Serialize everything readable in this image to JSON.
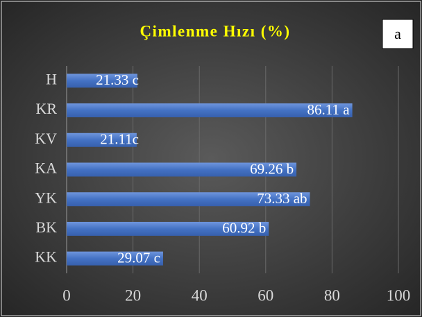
{
  "chart_data": {
    "type": "bar",
    "orientation": "horizontal",
    "title": "Çimlenme Hızı (%)",
    "annotation": "a",
    "categories": [
      "H",
      "KR",
      "KV",
      "KA",
      "YK",
      "BK",
      "KK"
    ],
    "values": [
      21.33,
      86.11,
      21.11,
      69.26,
      73.33,
      60.92,
      29.07
    ],
    "value_labels": [
      "21.33 c",
      "86.11 a",
      "21.11c",
      "69.26 b",
      "73.33 ab",
      "60.92 b",
      "29.07 c"
    ],
    "color": "#4472c4",
    "xlim": [
      0,
      100
    ],
    "xticks": [
      0,
      20,
      40,
      60,
      80,
      100
    ],
    "grid": true
  }
}
